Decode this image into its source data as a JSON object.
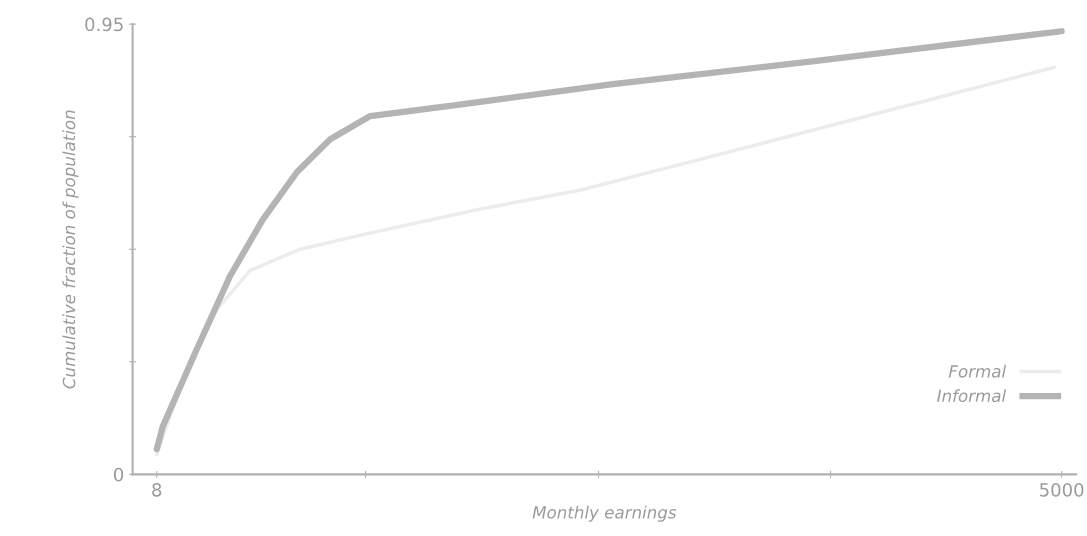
{
  "chart_data": {
    "type": "line",
    "xlabel": "Monthly earnings",
    "ylabel": "Cumulative fraction of population",
    "xlim": [
      -125,
      5080
    ],
    "xticks": [
      8,
      {
        "value": 1160,
        "label": null
      },
      {
        "value": 2445,
        "label": null
      },
      {
        "value": 3725,
        "label": null
      },
      5000
    ],
    "ylim": [
      0,
      0.95
    ],
    "yticks": [
      0,
      {
        "value": 0.2375,
        "label": null
      },
      {
        "value": 0.475,
        "label": null
      },
      {
        "value": 0.7125,
        "label": null
      },
      0.95
    ],
    "grid": false,
    "legend": "bottom right",
    "marker": "none",
    "line_style": "solid",
    "series": [
      {
        "name": "Formal",
        "color": "#ececec",
        "x": [
          8,
          135,
          301,
          522,
          799,
          1158,
          1795,
          2348,
          3011,
          4007,
          4960
        ],
        "values": [
          0.042,
          0.18,
          0.33,
          0.43,
          0.475,
          0.507,
          0.56,
          0.6,
          0.665,
          0.764,
          0.859
        ]
      },
      {
        "name": "Informal",
        "color": "#b4b4b4",
        "x": [
          8,
          41,
          229,
          412,
          594,
          782,
          965,
          1186,
          1700,
          2513,
          3636,
          5000
        ],
        "values": [
          0.053,
          0.101,
          0.264,
          0.418,
          0.538,
          0.638,
          0.707,
          0.756,
          0.781,
          0.823,
          0.872,
          0.935
        ]
      }
    ]
  }
}
